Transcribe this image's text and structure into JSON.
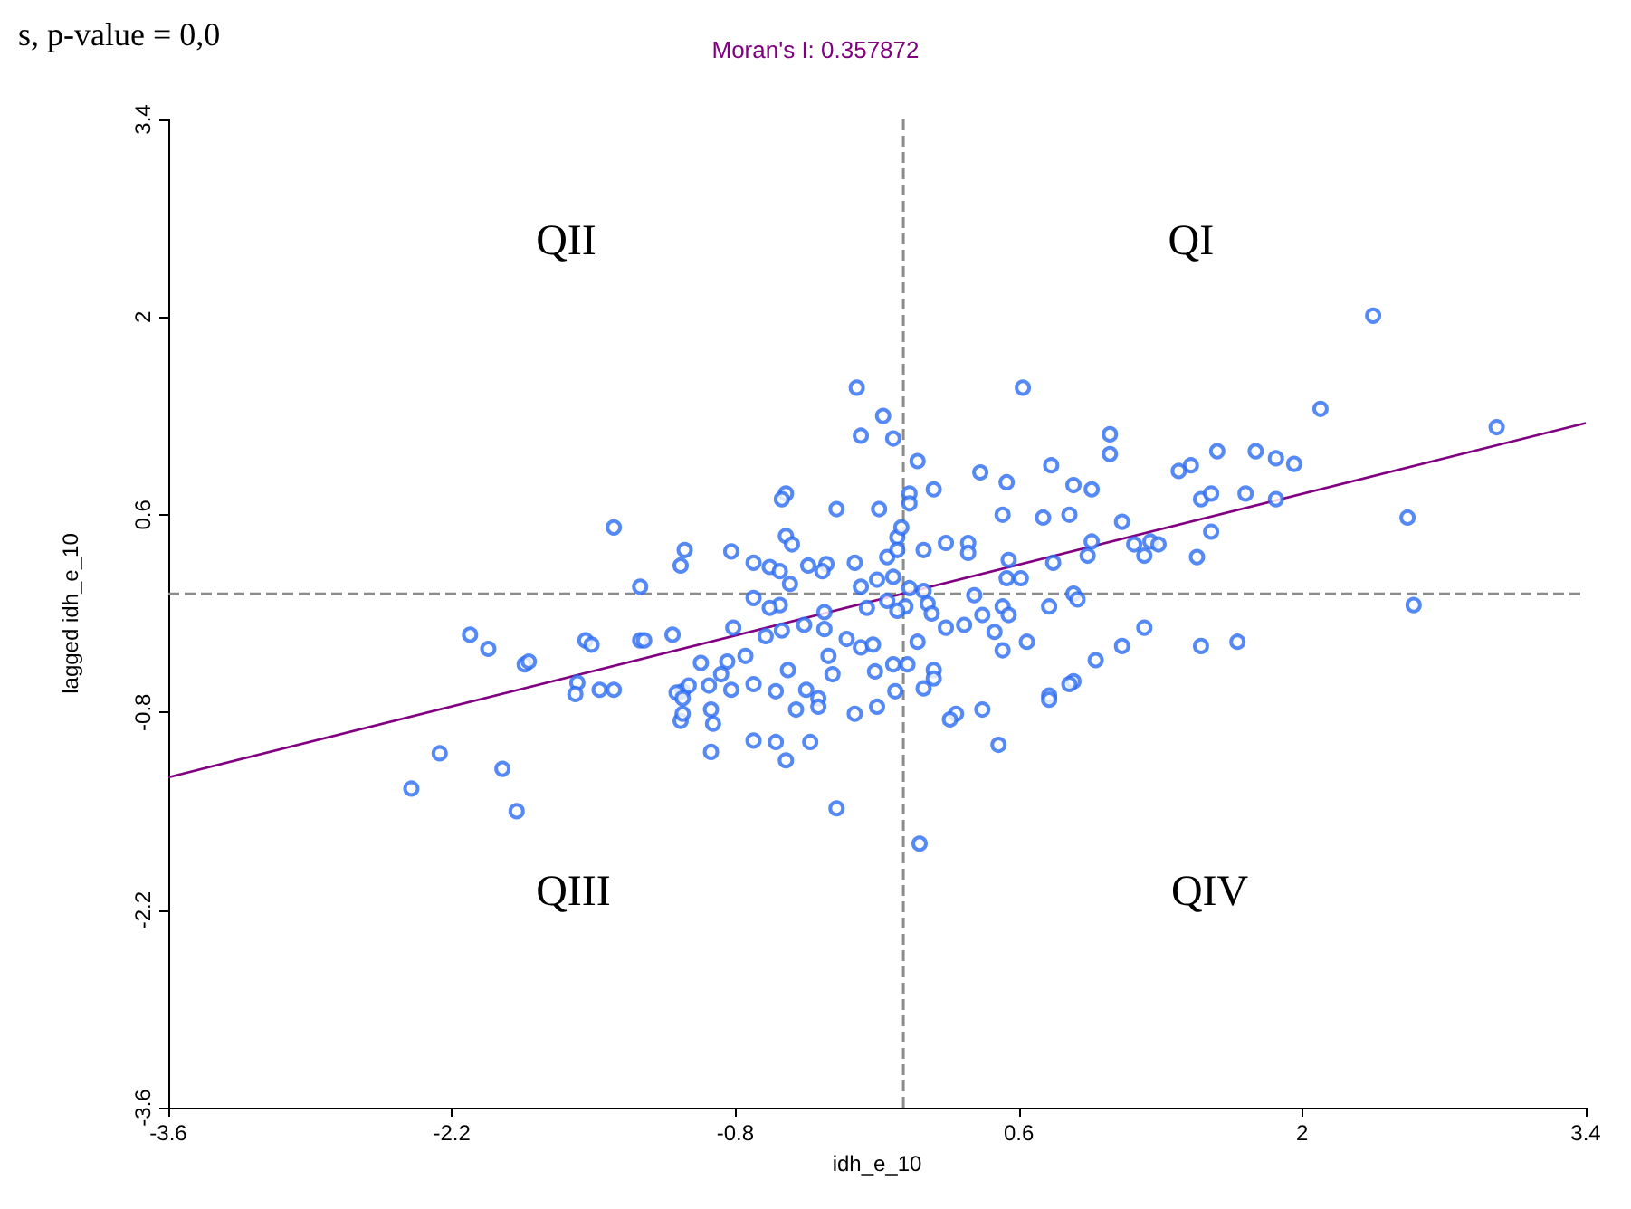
{
  "chart_data": {
    "type": "scatter",
    "title": "Moran's I: 0.357872",
    "xlabel": "idh_e_10",
    "ylabel": "lagged idh_e_10",
    "annotations": [
      "s, p-value = 0,0",
      "QII",
      "QI",
      "QIII",
      "QIV"
    ],
    "xlim": [
      -3.6,
      3.4
    ],
    "xticks": [
      -3.6,
      -2.2,
      -0.8,
      0.6,
      2,
      3.4
    ],
    "ylim": [
      -3.6,
      3.4
    ],
    "yticks": [
      -3.6,
      -2.2,
      -0.8,
      0.6,
      2,
      3.4
    ],
    "grid": false,
    "marker": "circle",
    "ref_lines": [
      {
        "axis": "x",
        "value": 0.03,
        "color": "#8c8c8c",
        "line_style": "dashed"
      },
      {
        "axis": "y",
        "value": 0.04,
        "color": "#8c8c8c",
        "line_style": "dashed"
      }
    ],
    "series": [
      {
        "color": "#2a6bf2",
        "x": [
          -0.2,
          -0.07,
          -0.18,
          -0.02,
          -0.55,
          -0.57,
          -0.3,
          -0.09,
          -1.4,
          -0.55,
          -0.52,
          -1.05,
          -0.82,
          -1.07,
          -0.71,
          -0.63,
          -0.58,
          -0.44,
          -0.35,
          -0.21,
          -0.05,
          -0.53,
          -1.27,
          -0.37,
          -0.18,
          -0.1,
          0,
          -0.02,
          0.02,
          -0.71,
          -0.58,
          -0.63,
          -0.36,
          -0.15,
          -0.05,
          -1.11,
          -2.11,
          -2.02,
          -1.54,
          -1.51,
          -1.27,
          -1.25,
          -0.81,
          -0.65,
          -0.57,
          -0.46,
          -0.36,
          -0.25,
          -0.18,
          -0.12,
          -0.34,
          -0.75,
          -0.84,
          -0.97,
          -0.87,
          -0.54,
          -0.32,
          -0.11,
          -0.02,
          -1.84,
          -1.82,
          -1.58,
          -1.47,
          -1.59,
          -1.4,
          -1.06,
          -1.03,
          -0.93,
          -0.82,
          -0.71,
          -0.6,
          -0.45,
          -0.39,
          -1.09,
          -1.06,
          -0.92,
          -0.5,
          -0.39,
          -0.21,
          -0.1,
          -0.91,
          -1.07,
          -1.06,
          -2.26,
          -1.95,
          -2.4,
          -1.88,
          -0.71,
          -0.6,
          -0.55,
          -0.3,
          -0.92,
          -0.43,
          2.35,
          0.62,
          2.09,
          2.96,
          1.05,
          1.05,
          1.58,
          1.77,
          1.87,
          1.96,
          1.45,
          1.39,
          0.1,
          0.41,
          0.76,
          0.54,
          0.87,
          0.96,
          0.18,
          0.06,
          0.06,
          1.5,
          1.55,
          1.72,
          1.87,
          0.52,
          0.72,
          0.85,
          1.11,
          2.52,
          0.24,
          0.35,
          0.35,
          0.13,
          0,
          0.96,
          1.17,
          1.25,
          1.29,
          1.22,
          1.55,
          1.48,
          0.55,
          0.77,
          0.94,
          0.54,
          0.61,
          0.06,
          0.13,
          0.87,
          2.55,
          0.04,
          0.15,
          0,
          0.17,
          0.38,
          0.52,
          0.55,
          0.42,
          0.75,
          0.89,
          0.24,
          0.33,
          0.48,
          0.1,
          0.52,
          0.64,
          1.22,
          1.11,
          1.5,
          1.68,
          0.98,
          0.05,
          0.18,
          0.18,
          0.13,
          -0.01,
          0.87,
          0.85,
          0.75,
          0.75,
          0.29,
          0.26,
          0.42,
          0.5,
          0.11
        ],
        "values": [
          1.5,
          1.3,
          1.16,
          1.14,
          0.75,
          0.71,
          0.64,
          0.64,
          0.51,
          0.45,
          0.39,
          0.35,
          0.34,
          0.24,
          0.26,
          0.23,
          0.2,
          0.24,
          0.25,
          0.26,
          0.3,
          0.11,
          0.09,
          0.2,
          0.09,
          0.14,
          0.44,
          0.16,
          0.51,
          0.01,
          -0.04,
          -0.06,
          -0.09,
          -0.06,
          -0.01,
          -0.25,
          -0.25,
          -0.35,
          -0.29,
          -0.32,
          -0.29,
          -0.29,
          -0.2,
          -0.26,
          -0.22,
          -0.18,
          -0.21,
          -0.28,
          -0.34,
          -0.32,
          -0.4,
          -0.4,
          -0.44,
          -0.45,
          -0.53,
          -0.5,
          -0.53,
          -0.51,
          -0.46,
          -0.46,
          -0.44,
          -0.59,
          -0.64,
          -0.67,
          -0.64,
          -0.65,
          -0.61,
          -0.61,
          -0.64,
          -0.6,
          -0.65,
          -0.64,
          -0.7,
          -0.66,
          -0.7,
          -0.78,
          -0.78,
          -0.76,
          -0.81,
          -0.76,
          -0.88,
          -0.86,
          -0.81,
          -1.09,
          -1.2,
          -1.34,
          -1.5,
          -1.0,
          -1.01,
          -1.14,
          -1.48,
          -1.08,
          -1.01,
          2.01,
          1.5,
          1.35,
          1.22,
          1.17,
          1.03,
          1.05,
          1.05,
          1.0,
          0.96,
          0.95,
          0.91,
          0.98,
          0.9,
          0.95,
          0.83,
          0.81,
          0.78,
          0.78,
          0.75,
          0.68,
          0.71,
          0.75,
          0.75,
          0.71,
          0.6,
          0.58,
          0.6,
          0.55,
          0.58,
          0.4,
          0.4,
          0.33,
          0.35,
          0.35,
          0.41,
          0.39,
          0.41,
          0.39,
          0.31,
          0.48,
          0.3,
          0.28,
          0.26,
          0.31,
          0.15,
          0.15,
          0.08,
          0.06,
          0.04,
          -0.04,
          -0.05,
          -0.03,
          -0.08,
          -0.1,
          0.03,
          -0.05,
          -0.11,
          -0.11,
          -0.05,
          0,
          -0.2,
          -0.18,
          -0.23,
          -0.3,
          -0.36,
          -0.3,
          -0.2,
          -0.33,
          -0.33,
          -0.3,
          -0.43,
          -0.46,
          -0.5,
          -0.56,
          -0.63,
          -0.65,
          -0.58,
          -0.6,
          -0.68,
          -0.71,
          -0.81,
          -0.85,
          -0.78,
          -1.03,
          -1.73
        ]
      },
      {
        "type": "line",
        "color": "#800080",
        "line_style": "solid",
        "marker": "none",
        "x": [
          -3.6,
          3.4
        ],
        "values": [
          -1.26,
          1.25
        ]
      }
    ]
  }
}
